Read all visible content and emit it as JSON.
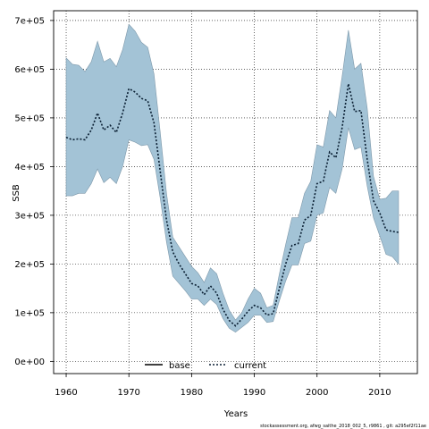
{
  "chart_data": {
    "type": "line",
    "title": "",
    "xlabel": "Years",
    "ylabel": "SSB",
    "xlim": [
      1958,
      2016
    ],
    "ylim": [
      -25000,
      720000
    ],
    "x_ticks": [
      1960,
      1970,
      1980,
      1990,
      2000,
      2010
    ],
    "x_tick_labels": [
      "1960",
      "1970",
      "1980",
      "1990",
      "2000",
      "2010"
    ],
    "y_ticks": [
      0,
      100000,
      200000,
      300000,
      400000,
      500000,
      600000,
      700000
    ],
    "y_tick_labels": [
      "0e+00",
      "1e+05",
      "2e+05",
      "3e+05",
      "4e+05",
      "5e+05",
      "6e+05",
      "7e+05"
    ],
    "grid": true,
    "legend_position": "bottom-center",
    "colors": {
      "band": "#a3c3d6",
      "band_edge": "#7d98aa",
      "line": "#0a1f33"
    },
    "years": [
      1960,
      1961,
      1962,
      1963,
      1964,
      1965,
      1966,
      1967,
      1968,
      1969,
      1970,
      1971,
      1972,
      1973,
      1974,
      1975,
      1976,
      1977,
      1978,
      1979,
      1980,
      1981,
      1982,
      1983,
      1984,
      1985,
      1986,
      1987,
      1988,
      1989,
      1990,
      1991,
      1992,
      1993,
      1994,
      1995,
      1996,
      1997,
      1998,
      1999,
      2000,
      2001,
      2002,
      2003,
      2004,
      2005,
      2006,
      2007,
      2008,
      2009,
      2010,
      2011,
      2012,
      2013
    ],
    "series": [
      {
        "name": "current",
        "style": "dotted",
        "values": [
          460000,
          455000,
          457000,
          455000,
          475000,
          510000,
          475000,
          485000,
          470000,
          510000,
          560000,
          553000,
          540000,
          535000,
          490000,
          390000,
          290000,
          225000,
          200000,
          180000,
          160000,
          155000,
          137000,
          155000,
          140000,
          107000,
          84000,
          73000,
          87000,
          103000,
          115000,
          110000,
          95000,
          98000,
          150000,
          200000,
          238000,
          242000,
          290000,
          300000,
          365000,
          370000,
          430000,
          418000,
          480000,
          570000,
          513000,
          515000,
          415000,
          330000,
          305000,
          270000,
          267000,
          265000
        ]
      }
    ],
    "band": {
      "upper": [
        623000,
        610000,
        608000,
        595000,
        615000,
        657000,
        615000,
        622000,
        605000,
        640000,
        692000,
        678000,
        655000,
        645000,
        590000,
        470000,
        345000,
        255000,
        235000,
        215000,
        195000,
        182000,
        162000,
        192000,
        180000,
        140000,
        105000,
        85000,
        100000,
        128000,
        150000,
        140000,
        110000,
        115000,
        180000,
        240000,
        295000,
        295000,
        345000,
        370000,
        445000,
        440000,
        515000,
        500000,
        585000,
        680000,
        600000,
        612000,
        520000,
        380000,
        333000,
        335000,
        350000,
        350000
      ],
      "lower": [
        340000,
        340000,
        345000,
        345000,
        365000,
        395000,
        367000,
        378000,
        365000,
        400000,
        455000,
        450000,
        443000,
        445000,
        415000,
        335000,
        245000,
        175000,
        160000,
        145000,
        128000,
        128000,
        115000,
        128000,
        117000,
        88000,
        68000,
        60000,
        70000,
        80000,
        95000,
        95000,
        80000,
        82000,
        125000,
        165000,
        198000,
        198000,
        242000,
        247000,
        300000,
        305000,
        357000,
        345000,
        395000,
        480000,
        435000,
        440000,
        360000,
        295000,
        258000,
        220000,
        215000,
        200000
      ]
    },
    "legend": [
      {
        "label": "base",
        "style": "solid"
      },
      {
        "label": "current",
        "style": "dotted"
      }
    ],
    "footer": "stockassessment.org, afwg_saithe_2018_002_5, r9861 , git: a295ef2f11ae"
  }
}
